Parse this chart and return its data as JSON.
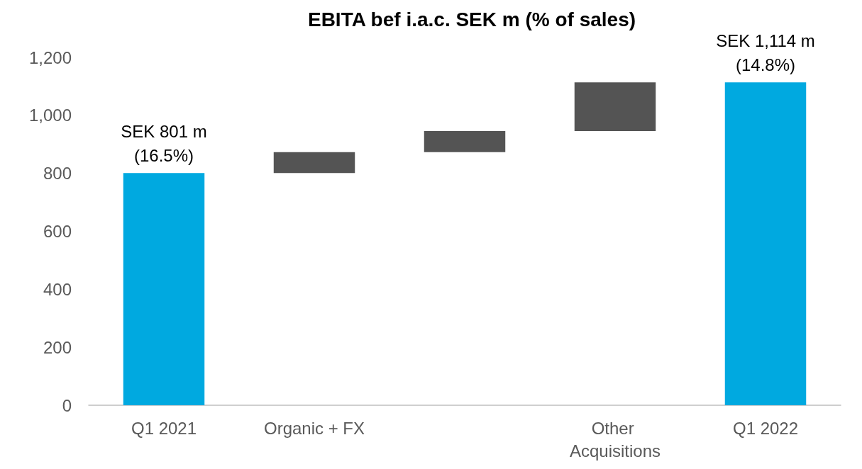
{
  "chart_data": {
    "type": "bar",
    "title": "EBITA bef i.a.c. SEK m (% of sales)",
    "categories": [
      "Q1 2021",
      "Organic + FX",
      null,
      "Other Acquisitions",
      "Q1 2022"
    ],
    "values": [
      801,
      72,
      73,
      168,
      1114
    ],
    "base": [
      0,
      801,
      873,
      946,
      0
    ],
    "colors": [
      "#00a9e0",
      "#545454",
      "#545454",
      "#545454",
      "#00a9e0"
    ],
    "value_labels": [
      "SEK 801 m\n(16.5%)",
      null,
      null,
      null,
      "SEK 1,114 m\n(14.8%)"
    ],
    "ylim": [
      0,
      1200
    ],
    "yticks": [
      0,
      200,
      400,
      600,
      800,
      {
        "value": 1000,
        "label": "1,000"
      },
      {
        "value": 1200,
        "label": "1,200"
      }
    ]
  }
}
